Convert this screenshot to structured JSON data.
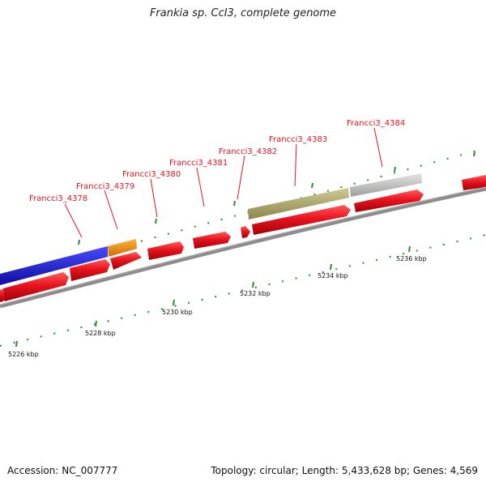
{
  "title": "Frankia sp. CcI3, complete genome",
  "footer": {
    "accession": "Accession: NC_007777",
    "summary": "Topology: circular; Length: 5,433,628 bp; Genes: 4,569"
  },
  "colors": {
    "backbone": "#8c8c8c",
    "cds": "#e8141e",
    "tick": "#2e8b2e",
    "label": "#e0141e",
    "feature_blue": "#1c1ce0",
    "feature_orange": "#f2960e",
    "feature_olive": "#b2ac72",
    "feature_gray": "#c4c4c4"
  },
  "ruler_labels": [
    {
      "text": "5226 kbp"
    },
    {
      "text": "5228 kbp"
    },
    {
      "text": "5230 kbp"
    },
    {
      "text": "5232 kbp"
    },
    {
      "text": "5234 kbp"
    },
    {
      "text": "5236 kbp"
    }
  ],
  "gene_labels": [
    {
      "text": "Francci3_4378"
    },
    {
      "text": "Francci3_4379"
    },
    {
      "text": "Francci3_4380"
    },
    {
      "text": "Francci3_4381"
    },
    {
      "text": "Francci3_4382"
    },
    {
      "text": "Francci3_4383"
    },
    {
      "text": "Francci3_4384"
    }
  ]
}
